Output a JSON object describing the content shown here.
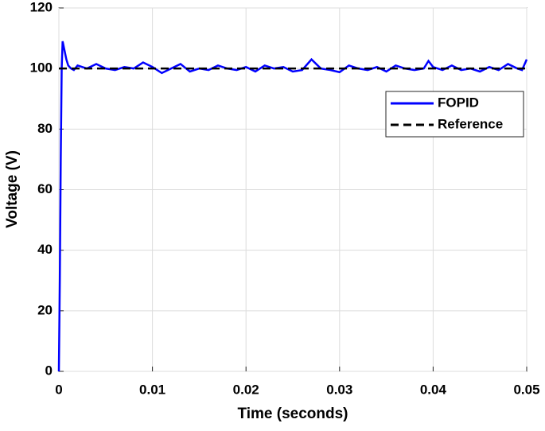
{
  "chart_data": {
    "type": "line",
    "xlabel": "Time (seconds)",
    "ylabel": "Voltage (V)",
    "xlim": [
      0,
      0.05
    ],
    "xticks": [
      0,
      0.01,
      0.02,
      0.03,
      0.04,
      0.05
    ],
    "ylim": [
      0,
      120
    ],
    "yticks": [
      0,
      20,
      40,
      60,
      80,
      100,
      120
    ],
    "grid": true,
    "legend": "upper right",
    "series": [
      {
        "name": "FOPID",
        "color": "#0000ff",
        "dash": false,
        "x": [
          0,
          0.0001,
          0.0002,
          0.0003,
          0.0004,
          0.0006,
          0.0008,
          0.001,
          0.0013,
          0.0016,
          0.002,
          0.003,
          0.004,
          0.005,
          0.006,
          0.007,
          0.008,
          0.009,
          0.01,
          0.011,
          0.012,
          0.013,
          0.014,
          0.015,
          0.016,
          0.017,
          0.018,
          0.019,
          0.02,
          0.021,
          0.022,
          0.023,
          0.024,
          0.025,
          0.026,
          0.027,
          0.028,
          0.029,
          0.03,
          0.031,
          0.032,
          0.033,
          0.034,
          0.035,
          0.036,
          0.037,
          0.038,
          0.039,
          0.0395,
          0.04,
          0.041,
          0.042,
          0.043,
          0.044,
          0.045,
          0.046,
          0.047,
          0.048,
          0.049,
          0.0495,
          0.05
        ],
        "values": [
          0,
          30,
          70,
          100,
          109,
          106,
          103,
          101,
          100,
          99.5,
          101,
          100,
          101.5,
          100,
          99.5,
          100.5,
          100,
          102,
          100.5,
          98.5,
          100,
          101.5,
          99,
          100,
          99.5,
          101,
          100,
          99.5,
          100.5,
          99,
          101,
          100,
          100.5,
          99,
          99.5,
          103,
          100,
          99.5,
          98.8,
          101,
          100,
          99.5,
          100.5,
          99,
          101,
          100,
          99.5,
          100,
          102.5,
          100.5,
          99.5,
          101,
          99.5,
          100,
          99,
          100.5,
          99.5,
          101.5,
          100,
          99.5,
          103
        ]
      },
      {
        "name": "Reference",
        "color": "#000000",
        "dash": true,
        "x": [
          0,
          0.05
        ],
        "values": [
          100,
          100
        ]
      }
    ]
  }
}
